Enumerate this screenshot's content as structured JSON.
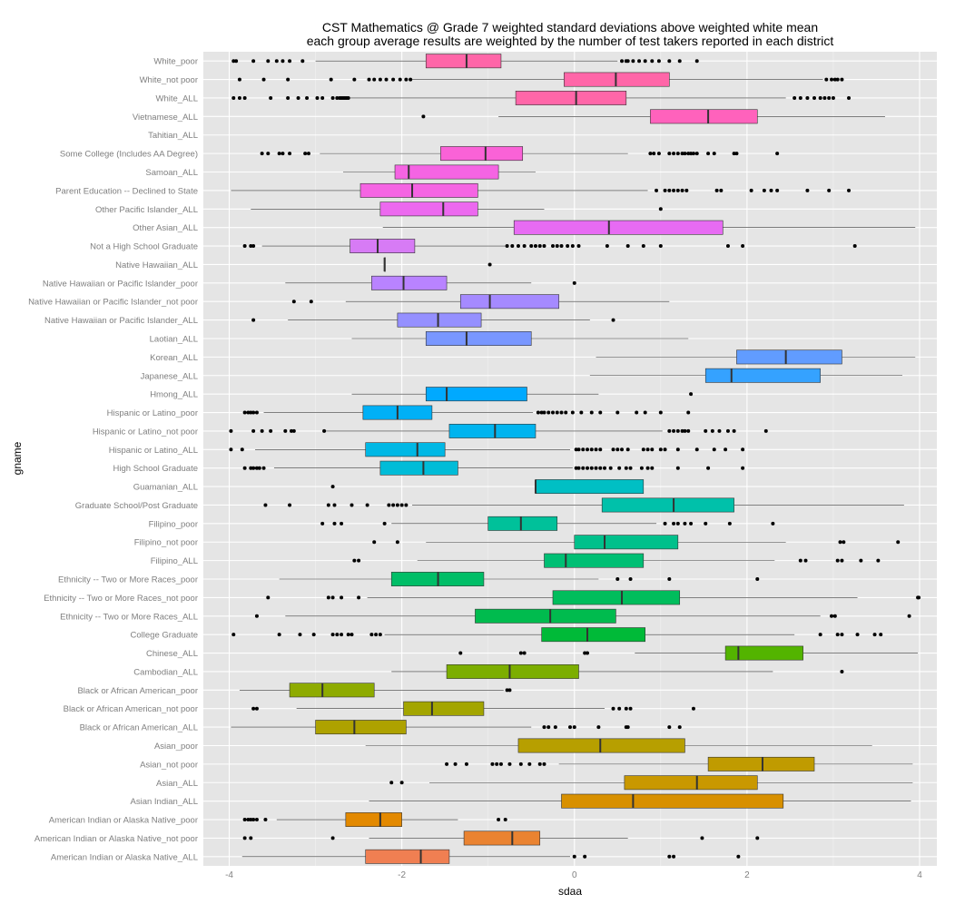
{
  "chart_data": {
    "type": "boxplot",
    "title_line1": "CST Mathematics @ Grade 7 weighted standard deviations above weighted white mean",
    "title_line2": "each group average results are weighted by the number of test takers reported in each district",
    "xlabel": "sdaa",
    "ylabel": "gname",
    "xlim": [
      -4.3,
      4.2
    ],
    "x_ticks": [
      -4,
      -2,
      0,
      2,
      4
    ],
    "x_tick_labels": [
      "-4",
      "-2",
      "0",
      "2",
      "4"
    ],
    "colors": {
      "panel_bg": "#e5e5e5",
      "grid_major": "#ffffff",
      "grid_minor": "#f2f2f2",
      "box_border": "#333333",
      "whisker": "#333333",
      "outlier": "#000000"
    },
    "groups": [
      {
        "name": "White_poor",
        "min": -3.0,
        "q1": -1.72,
        "median": -1.25,
        "q3": -0.85,
        "max": 0.5,
        "color": "#F8766D",
        "outliers": [
          -3.95,
          -3.92,
          -3.72,
          -3.55,
          -3.45,
          -3.38,
          -3.3,
          -3.15,
          0.55,
          0.6,
          0.62,
          0.68,
          0.75,
          0.82,
          0.9,
          0.98,
          1.1,
          1.22,
          1.42
        ]
      },
      {
        "name": "White_not poor",
        "min": -1.9,
        "q1": -0.12,
        "median": 0.48,
        "q3": 1.1,
        "max": 2.88,
        "color": "#F8766D",
        "outliers": [
          -3.88,
          -3.6,
          -3.32,
          -2.82,
          -2.55,
          -2.38,
          -2.32,
          -2.25,
          -2.18,
          -2.1,
          -2.02,
          -1.95,
          -1.9,
          2.92,
          2.98,
          3.02,
          3.05,
          3.1
        ]
      },
      {
        "name": "White_ALL",
        "min": -2.6,
        "q1": -0.68,
        "median": 0.02,
        "q3": 0.6,
        "max": 2.45,
        "color": "#F8766D",
        "outliers": [
          -3.95,
          -3.88,
          -3.82,
          -3.52,
          -3.32,
          -3.2,
          -3.1,
          -2.98,
          -2.92,
          -2.8,
          -2.75,
          -2.72,
          -2.7,
          -2.68,
          -2.66,
          -2.64,
          -2.62,
          2.55,
          2.62,
          2.7,
          2.78,
          2.85,
          2.9,
          2.95,
          3.0,
          3.18
        ]
      },
      {
        "name": "Vietnamese_ALL",
        "min": -0.88,
        "q1": 0.88,
        "median": 1.55,
        "q3": 2.12,
        "max": 3.6,
        "color": "#F8766D",
        "outliers": [
          -1.75
        ]
      },
      {
        "name": "Tahitian_ALL",
        "color": "#F8766D",
        "outliers": []
      },
      {
        "name": "Some College (Includes AA Degree)",
        "min": -2.95,
        "q1": -1.55,
        "median": -1.03,
        "q3": -0.6,
        "max": 0.62,
        "color": "#F8766D",
        "outliers": [
          -3.62,
          -3.55,
          -3.42,
          -3.38,
          -3.3,
          -3.12,
          -3.08,
          0.88,
          0.92,
          0.98,
          1.1,
          1.15,
          1.2,
          1.25,
          1.28,
          1.32,
          1.35,
          1.38,
          1.42,
          1.55,
          1.62,
          1.85,
          1.88,
          2.35
        ]
      },
      {
        "name": "Samoan_ALL",
        "min": -2.68,
        "q1": -2.08,
        "median": -1.92,
        "q3": -0.88,
        "max": -0.45,
        "color": "#F8766D",
        "outliers": []
      },
      {
        "name": "Parent Education -- Declined to State",
        "min": -3.98,
        "q1": -2.48,
        "median": -1.88,
        "q3": -1.12,
        "max": 0.85,
        "color": "#F8766D",
        "outliers": [
          0.95,
          1.05,
          1.1,
          1.15,
          1.2,
          1.25,
          1.3,
          1.65,
          1.7,
          2.05,
          2.2,
          2.28,
          2.35,
          2.7,
          2.95,
          3.18
        ]
      },
      {
        "name": "Other Pacific Islander_ALL",
        "min": -3.75,
        "q1": -2.25,
        "median": -1.52,
        "q3": -1.12,
        "max": -0.35,
        "color": "#F8766D",
        "outliers": [
          1.0
        ]
      },
      {
        "name": "Other Asian_ALL",
        "min": -2.22,
        "q1": -0.7,
        "median": 0.4,
        "q3": 1.72,
        "max": 3.95,
        "color": "#F8766D",
        "outliers": []
      },
      {
        "name": "Not a High School Graduate",
        "min": -3.62,
        "q1": -2.6,
        "median": -2.28,
        "q3": -1.85,
        "max": -0.8,
        "color": "#F8766D",
        "outliers": [
          -3.82,
          -3.75,
          -3.72,
          -0.78,
          -0.72,
          -0.65,
          -0.58,
          -0.5,
          -0.45,
          -0.4,
          -0.35,
          -0.25,
          -0.2,
          -0.15,
          -0.08,
          -0.02,
          0.05,
          0.38,
          0.62,
          0.8,
          1.0,
          1.78,
          1.95,
          3.25
        ]
      },
      {
        "name": "Native Hawaiian_ALL",
        "min": -2.2,
        "q1": -2.2,
        "median": -2.2,
        "q3": -2.2,
        "max": -2.2,
        "color": "#F8766D",
        "outliers": [
          -0.98
        ]
      },
      {
        "name": "Native Hawaiian or Pacific Islander_poor",
        "min": -3.35,
        "q1": -2.35,
        "median": -1.98,
        "q3": -1.48,
        "max": -0.5,
        "color": "#F8766D",
        "outliers": [
          0.0
        ]
      },
      {
        "name": "Native Hawaiian or Pacific Islander_not poor",
        "min": -2.65,
        "q1": -1.32,
        "median": -0.98,
        "q3": -0.18,
        "max": 1.1,
        "color": "#F8766D",
        "outliers": [
          -3.25,
          -3.05
        ]
      },
      {
        "name": "Native Hawaiian or Pacific Islander_ALL",
        "min": -3.32,
        "q1": -2.05,
        "median": -1.58,
        "q3": -1.08,
        "max": 0.18,
        "color": "#F8766D",
        "outliers": [
          -3.72,
          0.45
        ]
      },
      {
        "name": "Laotian_ALL",
        "min": -2.58,
        "q1": -1.72,
        "median": -1.25,
        "q3": -0.5,
        "max": 1.32,
        "color": "#F8766D",
        "outliers": []
      },
      {
        "name": "Korean_ALL",
        "min": 0.25,
        "q1": 1.88,
        "median": 2.45,
        "q3": 3.1,
        "max": 3.95,
        "color": "#F8766D",
        "outliers": []
      },
      {
        "name": "Japanese_ALL",
        "min": 0.18,
        "q1": 1.52,
        "median": 1.82,
        "q3": 2.85,
        "max": 3.8,
        "color": "#F8766D",
        "outliers": []
      },
      {
        "name": "Hmong_ALL",
        "min": -2.58,
        "q1": -1.72,
        "median": -1.48,
        "q3": -0.55,
        "max": 0.28,
        "color": "#F8766D",
        "outliers": [
          1.35
        ]
      },
      {
        "name": "Hispanic or Latino_poor",
        "min": -3.6,
        "q1": -2.45,
        "median": -2.05,
        "q3": -1.65,
        "max": -0.48,
        "color": "#F8766D",
        "outliers": [
          -3.82,
          -3.78,
          -3.75,
          -3.72,
          -3.68,
          -0.42,
          -0.38,
          -0.35,
          -0.3,
          -0.25,
          -0.2,
          -0.15,
          -0.1,
          -0.02,
          0.08,
          0.2,
          0.3,
          0.5,
          0.72,
          0.82,
          1.0,
          1.32
        ]
      },
      {
        "name": "Hispanic or Latino_not poor",
        "min": -2.88,
        "q1": -1.45,
        "median": -0.92,
        "q3": -0.45,
        "max": 1.02,
        "color": "#F8766D",
        "outliers": [
          -3.98,
          -3.72,
          -3.62,
          -3.52,
          -3.35,
          -3.28,
          -3.25,
          -2.9,
          1.1,
          1.15,
          1.2,
          1.25,
          1.28,
          1.32,
          1.52,
          1.6,
          1.68,
          1.78,
          1.85,
          2.22
        ]
      },
      {
        "name": "Hispanic or Latino_ALL",
        "min": -3.7,
        "q1": -2.42,
        "median": -1.82,
        "q3": -1.5,
        "max": -0.05,
        "color": "#F8766D",
        "outliers": [
          -3.98,
          -3.85,
          0.02,
          0.05,
          0.1,
          0.15,
          0.2,
          0.25,
          0.3,
          0.45,
          0.5,
          0.55,
          0.62,
          0.8,
          0.85,
          0.9,
          1.0,
          1.05,
          1.2,
          1.42,
          1.62,
          1.75,
          1.95
        ]
      },
      {
        "name": "High School Graduate",
        "min": -3.48,
        "q1": -2.25,
        "median": -1.75,
        "q3": -1.35,
        "max": -0.02,
        "color": "#F8766D",
        "outliers": [
          -3.82,
          -3.75,
          -3.72,
          -3.68,
          -3.65,
          -3.6,
          0.02,
          0.05,
          0.1,
          0.15,
          0.2,
          0.25,
          0.3,
          0.35,
          0.42,
          0.52,
          0.6,
          0.65,
          0.78,
          0.85,
          0.9,
          1.2,
          1.55,
          1.95
        ]
      },
      {
        "name": "Guamanian_ALL",
        "min": -0.45,
        "q1": -0.45,
        "median": -0.45,
        "q3": 0.8,
        "max": 0.8,
        "color": "#F8766D",
        "outliers": [
          -2.8
        ]
      },
      {
        "name": "Graduate School/Post Graduate",
        "min": -1.88,
        "q1": 0.32,
        "median": 1.15,
        "q3": 1.85,
        "max": 3.82,
        "color": "#F8766D",
        "outliers": [
          -3.58,
          -3.3,
          -2.85,
          -2.78,
          -2.58,
          -2.4,
          -2.15,
          -2.1,
          -2.05,
          -2.0,
          -1.95
        ]
      },
      {
        "name": "Filipino_poor",
        "min": -2.12,
        "q1": -1.0,
        "median": -0.62,
        "q3": -0.2,
        "max": 0.95,
        "color": "#F8766D",
        "outliers": [
          -2.92,
          -2.78,
          -2.7,
          -2.2,
          1.05,
          1.15,
          1.2,
          1.28,
          1.35,
          1.52,
          1.8,
          2.3
        ]
      },
      {
        "name": "Filipino_not poor",
        "min": -1.72,
        "q1": 0.0,
        "median": 0.35,
        "q3": 1.2,
        "max": 2.45,
        "color": "#F8766D",
        "outliers": [
          -2.32,
          -2.05,
          3.08,
          3.12,
          3.75
        ]
      },
      {
        "name": "Filipino_ALL",
        "min": -1.82,
        "q1": -0.35,
        "median": -0.1,
        "q3": 0.8,
        "max": 2.32,
        "color": "#F8766D",
        "outliers": [
          -2.55,
          -2.5,
          2.62,
          2.68,
          3.05,
          3.1,
          3.32,
          3.52
        ]
      },
      {
        "name": "Ethnicity -- Two or More Races_poor",
        "min": -3.42,
        "q1": -2.12,
        "median": -1.58,
        "q3": -1.05,
        "max": 0.28,
        "color": "#F8766D",
        "outliers": [
          0.5,
          0.65,
          1.1,
          2.12
        ]
      },
      {
        "name": "Ethnicity -- Two or More Races_not poor",
        "min": -2.4,
        "q1": -0.25,
        "median": 0.55,
        "q3": 1.22,
        "max": 3.28,
        "color": "#F8766D",
        "outliers": [
          -3.55,
          -2.85,
          -2.8,
          -2.7,
          -2.5,
          3.98,
          3.99
        ]
      },
      {
        "name": "Ethnicity -- Two or More Races_ALL",
        "min": -3.35,
        "q1": -1.15,
        "median": -0.28,
        "q3": 0.48,
        "max": 2.85,
        "color": "#F8766D",
        "outliers": [
          -3.68,
          2.98,
          3.02,
          3.88
        ]
      },
      {
        "name": "College Graduate",
        "min": -2.2,
        "q1": -0.38,
        "median": 0.15,
        "q3": 0.82,
        "max": 2.55,
        "color": "#F8766D",
        "outliers": [
          -3.95,
          -3.42,
          -3.18,
          -3.02,
          -2.8,
          -2.75,
          -2.7,
          -2.62,
          -2.58,
          -2.35,
          -2.3,
          -2.25,
          2.85,
          3.05,
          3.1,
          3.28,
          3.48,
          3.55
        ]
      },
      {
        "name": "Chinese_ALL",
        "min": 0.7,
        "q1": 1.75,
        "median": 1.9,
        "q3": 2.65,
        "max": 3.98,
        "color": "#F8766D",
        "outliers": [
          -1.32,
          -0.62,
          -0.58,
          0.12,
          0.15
        ]
      },
      {
        "name": "Cambodian_ALL",
        "min": -2.12,
        "q1": -1.48,
        "median": -0.75,
        "q3": 0.05,
        "max": 2.3,
        "color": "#F8766D",
        "outliers": [
          3.1
        ]
      },
      {
        "name": "Black or African American_poor",
        "min": -3.88,
        "q1": -3.3,
        "median": -2.92,
        "q3": -2.32,
        "max": -0.82,
        "color": "#F8766D",
        "outliers": [
          -0.78,
          -0.75
        ]
      },
      {
        "name": "Black or African American_not poor",
        "min": -3.22,
        "q1": -1.98,
        "median": -1.65,
        "q3": -1.05,
        "max": 0.35,
        "color": "#F8766D",
        "outliers": [
          -3.72,
          -3.68,
          0.45,
          0.52,
          0.6,
          0.65,
          1.38
        ]
      },
      {
        "name": "Black or African American_ALL",
        "min": -3.98,
        "q1": -3.0,
        "median": -2.55,
        "q3": -1.95,
        "max": -0.5,
        "color": "#F8766D",
        "outliers": [
          -0.35,
          -0.3,
          -0.22,
          -0.05,
          0.0,
          0.28,
          0.6,
          0.62,
          1.1,
          1.22
        ]
      },
      {
        "name": "Asian_poor",
        "min": -2.42,
        "q1": -0.65,
        "median": 0.3,
        "q3": 1.28,
        "max": 3.45,
        "color": "#F8766D",
        "outliers": []
      },
      {
        "name": "Asian_not poor",
        "min": -0.18,
        "q1": 1.55,
        "median": 2.18,
        "q3": 2.78,
        "max": 3.92,
        "color": "#F8766D",
        "outliers": [
          -1.48,
          -1.38,
          -1.25,
          -0.95,
          -0.9,
          -0.85,
          -0.75,
          -0.62,
          -0.52,
          -0.4,
          -0.35
        ]
      },
      {
        "name": "Asian_ALL",
        "min": -1.68,
        "q1": 0.58,
        "median": 1.42,
        "q3": 2.12,
        "max": 3.92,
        "color": "#F8766D",
        "outliers": [
          -2.12,
          -2.0
        ]
      },
      {
        "name": "Asian Indian_ALL",
        "min": -2.38,
        "q1": -0.15,
        "median": 0.68,
        "q3": 2.42,
        "max": 3.9,
        "color": "#F8766D",
        "outliers": []
      },
      {
        "name": "American Indian or Alaska Native_poor",
        "min": -3.45,
        "q1": -2.65,
        "median": -2.25,
        "q3": -2.0,
        "max": -1.35,
        "color": "#F8766D",
        "outliers": [
          -3.82,
          -3.78,
          -3.75,
          -3.72,
          -3.68,
          -3.58,
          -0.88,
          -0.8
        ]
      },
      {
        "name": "American Indian or Alaska Native_not poor",
        "min": -2.38,
        "q1": -1.28,
        "median": -0.72,
        "q3": -0.4,
        "max": 0.62,
        "color": "#F8766D",
        "outliers": [
          -3.82,
          -3.75,
          -2.8,
          1.48,
          2.12
        ]
      },
      {
        "name": "American Indian or Alaska Native_ALL",
        "min": -3.85,
        "q1": -2.42,
        "median": -1.78,
        "q3": -1.45,
        "max": -0.05,
        "color": "#F8766D",
        "outliers": [
          0.0,
          0.12,
          1.1,
          1.15,
          1.9
        ]
      }
    ]
  },
  "fill_palette": [
    "#FF66A8",
    "#FF66A8",
    "#FF66A8",
    "#FF62BC",
    "#FF62BC",
    "#FA62D7",
    "#F564E3",
    "#F564E3",
    "#EC69EF",
    "#E76BF3",
    "#D77BF5",
    "#C77CFF",
    "#B983FF",
    "#A58AFF",
    "#9590FF",
    "#7997FF",
    "#619CFF",
    "#35A2FF",
    "#00A9FF",
    "#00B0F6",
    "#00B4EF",
    "#00B8E5",
    "#00BCD8",
    "#00BFC4",
    "#00C1AA",
    "#00C19A",
    "#00C08B",
    "#00BF74",
    "#00BE67",
    "#00BD5C",
    "#00BB4E",
    "#00BA38",
    "#53B400",
    "#7CAE00",
    "#8EAB00",
    "#A3A500",
    "#AEA200",
    "#B79F00",
    "#C09B00",
    "#C99800",
    "#D89000",
    "#E38900",
    "#EA8331",
    "#F07F52",
    "#F8766D"
  ]
}
